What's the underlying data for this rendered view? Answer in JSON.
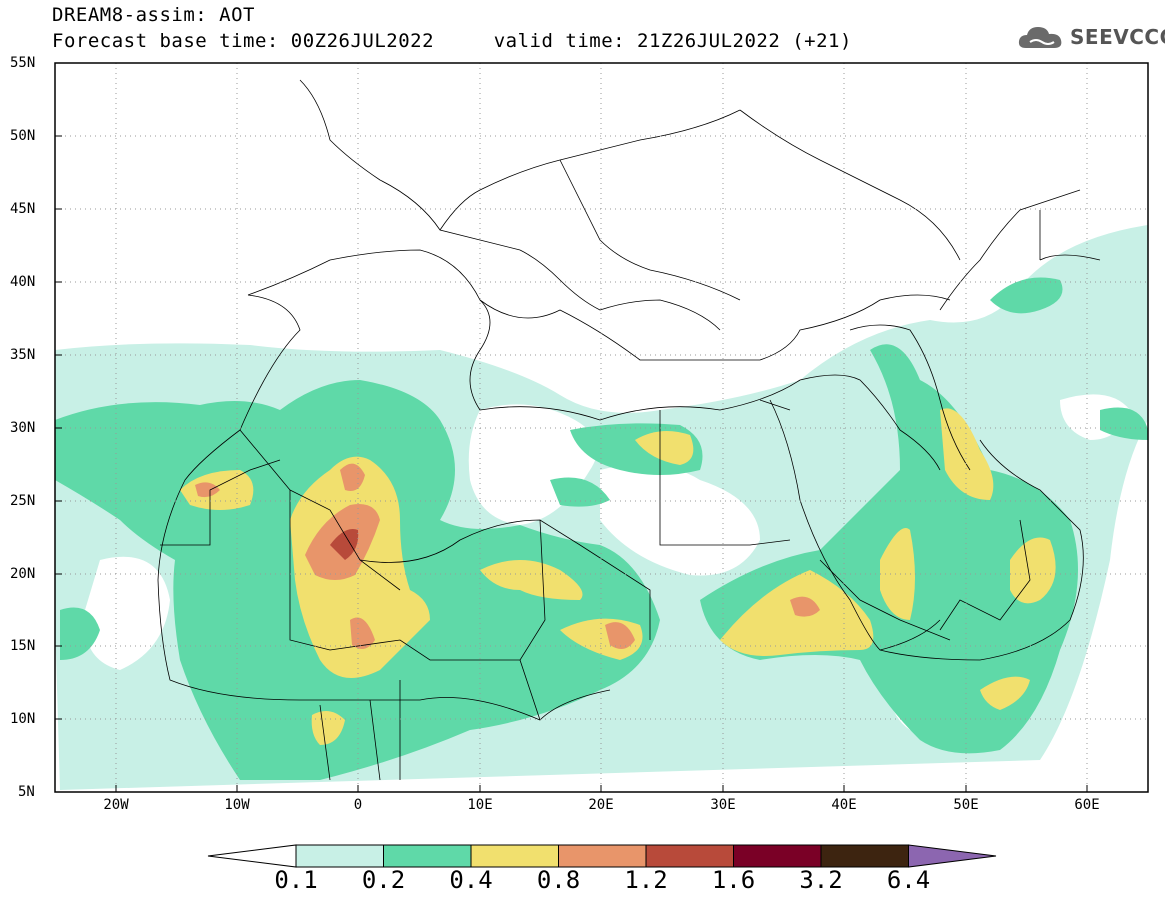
{
  "header": {
    "title_line1": "DREAM8-assim: AOT",
    "title_line2": "Forecast base time: 00Z26JUL2022     valid time: 21Z26JUL2022 (+21)"
  },
  "logo": {
    "text": "SEEVCCC",
    "icon": "cloud-icon"
  },
  "map": {
    "projection": "equirectangular",
    "lon_range": [
      -25,
      65
    ],
    "lat_range": [
      5,
      55
    ],
    "lat_labels": [
      "55N",
      "50N",
      "45N",
      "40N",
      "35N",
      "30N",
      "25N",
      "20N",
      "15N",
      "10N",
      "5N"
    ],
    "lon_labels": [
      "20W",
      "10W",
      "0",
      "10E",
      "20E",
      "30E",
      "40E",
      "50E",
      "60E"
    ],
    "gridlines": "dotted"
  },
  "colorbar": {
    "labels": [
      "0.1",
      "0.2",
      "0.4",
      "0.8",
      "1.2",
      "1.6",
      "3.2",
      "6.4"
    ],
    "colors": [
      "#c8f0e6",
      "#5fd9a8",
      "#f1e06e",
      "#e8956a",
      "#b84a3a",
      "#7a0026",
      "#3d2410",
      "#8c66b0"
    ]
  }
}
